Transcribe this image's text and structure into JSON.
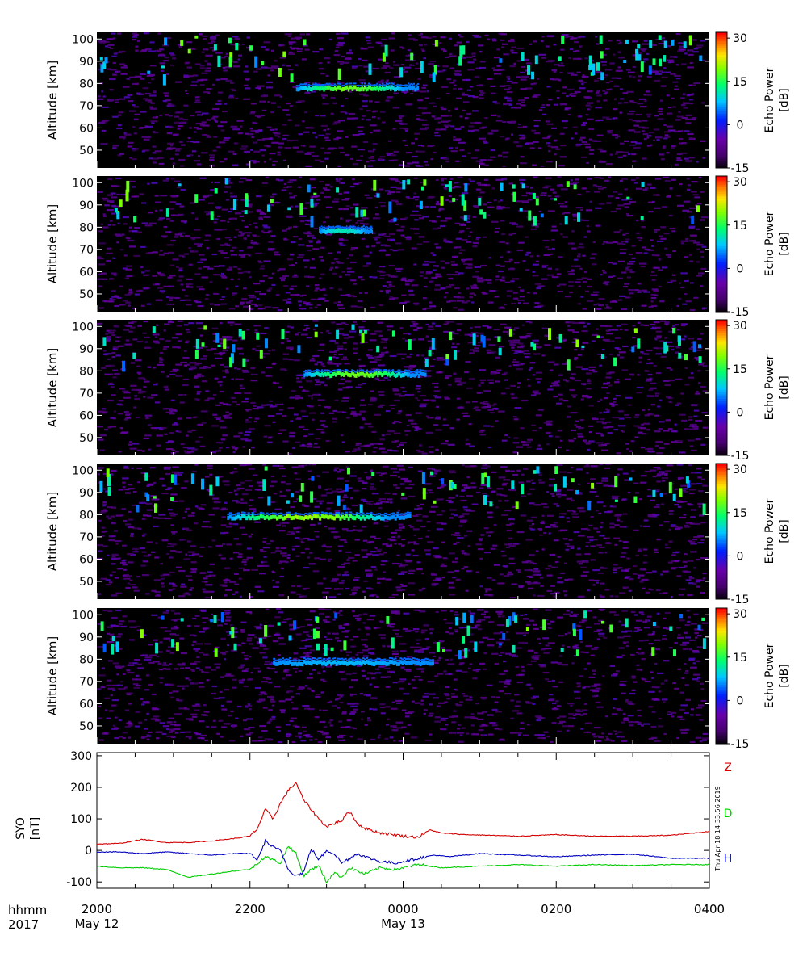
{
  "chart_data": [
    {
      "type": "heatmap",
      "panel": 1,
      "ylabel": "Altitude [km]",
      "ylim": [
        42,
        103
      ],
      "y_ticks": [
        50,
        60,
        70,
        80,
        90,
        100
      ],
      "xlim": [
        0,
        8
      ],
      "colorbar": {
        "label_line1": "Echo Power",
        "label_line2": "[dB]",
        "ticks": [
          30,
          15,
          0,
          -15
        ],
        "range": [
          -15,
          32
        ]
      },
      "echo_layer": {
        "start_h": 2.6,
        "end_h": 4.2,
        "altitude_km": 77.5,
        "peak_db": 20
      }
    },
    {
      "type": "heatmap",
      "panel": 2,
      "ylabel": "Altitude [km]",
      "ylim": [
        42,
        103
      ],
      "y_ticks": [
        50,
        60,
        70,
        80,
        90,
        100
      ],
      "xlim": [
        0,
        8
      ],
      "colorbar": {
        "label_line1": "Echo Power",
        "label_line2": "[dB]",
        "ticks": [
          30,
          15,
          0,
          -15
        ],
        "range": [
          -15,
          32
        ]
      },
      "echo_layer": {
        "start_h": 2.9,
        "end_h": 3.6,
        "altitude_km": 78,
        "peak_db": 12
      }
    },
    {
      "type": "heatmap",
      "panel": 3,
      "ylabel": "Altitude [km]",
      "ylim": [
        42,
        103
      ],
      "y_ticks": [
        50,
        60,
        70,
        80,
        90,
        100
      ],
      "xlim": [
        0,
        8
      ],
      "colorbar": {
        "label_line1": "Echo Power",
        "label_line2": "[dB]",
        "ticks": [
          30,
          15,
          0,
          -15
        ],
        "range": [
          -15,
          32
        ]
      },
      "echo_layer": {
        "start_h": 2.7,
        "end_h": 4.3,
        "altitude_km": 78,
        "peak_db": 20
      }
    },
    {
      "type": "heatmap",
      "panel": 4,
      "ylabel": "Altitude [km]",
      "ylim": [
        42,
        103
      ],
      "y_ticks": [
        50,
        60,
        70,
        80,
        90,
        100
      ],
      "xlim": [
        0,
        8
      ],
      "colorbar": {
        "label_line1": "Echo Power",
        "label_line2": "[dB]",
        "ticks": [
          30,
          15,
          0,
          -15
        ],
        "range": [
          -15,
          32
        ]
      },
      "echo_layer": {
        "start_h": 1.7,
        "end_h": 4.1,
        "altitude_km": 78.5,
        "peak_db": 22
      }
    },
    {
      "type": "heatmap",
      "panel": 5,
      "ylabel": "Altitude [km]",
      "ylim": [
        42,
        103
      ],
      "y_ticks": [
        50,
        60,
        70,
        80,
        90,
        100
      ],
      "xlim": [
        0,
        8
      ],
      "colorbar": {
        "label_line1": "Echo Power",
        "label_line2": "[dB]",
        "ticks": [
          30,
          15,
          0,
          -15
        ],
        "range": [
          -15,
          32
        ]
      },
      "echo_layer": {
        "start_h": 2.3,
        "end_h": 4.4,
        "altitude_km": 78,
        "peak_db": 8
      }
    },
    {
      "type": "line",
      "panel": 6,
      "ylabel_line1": "SYO",
      "ylabel_line2": "[nT]",
      "ylim": [
        -120,
        310
      ],
      "y_ticks": [
        -100,
        0,
        100,
        200,
        300
      ],
      "xlim": [
        0,
        8
      ],
      "timestamp": "Thu Apr 18 14:33:56 2019",
      "series": [
        {
          "name": "Z",
          "color": "#d40000",
          "x": [
            0,
            0.3,
            0.6,
            0.9,
            1.2,
            1.5,
            1.8,
            2.0,
            2.1,
            2.2,
            2.3,
            2.4,
            2.5,
            2.6,
            2.7,
            2.9,
            3.0,
            3.2,
            3.3,
            3.4,
            3.5,
            3.7,
            3.9,
            4.0,
            4.2,
            4.35,
            4.5,
            4.8,
            5.1,
            5.5,
            6.0,
            6.5,
            7.0,
            7.5,
            8.0
          ],
          "y": [
            20,
            22,
            35,
            25,
            25,
            30,
            38,
            45,
            70,
            130,
            100,
            150,
            190,
            215,
            160,
            100,
            75,
            95,
            125,
            85,
            70,
            55,
            50,
            45,
            42,
            65,
            55,
            50,
            48,
            45,
            50,
            45,
            45,
            48,
            60
          ]
        },
        {
          "name": "D",
          "color": "#00cc00",
          "x": [
            0,
            0.3,
            0.6,
            0.9,
            1.2,
            1.5,
            1.8,
            2.0,
            2.2,
            2.4,
            2.5,
            2.6,
            2.7,
            2.8,
            2.9,
            3.0,
            3.1,
            3.2,
            3.3,
            3.5,
            3.7,
            3.9,
            4.2,
            4.5,
            5.0,
            5.5,
            6.0,
            6.5,
            7.0,
            7.5,
            8.0
          ],
          "y": [
            -50,
            -55,
            -55,
            -60,
            -85,
            -75,
            -65,
            -60,
            -20,
            -40,
            15,
            -10,
            -80,
            -60,
            -50,
            -100,
            -70,
            -85,
            -55,
            -75,
            -55,
            -60,
            -45,
            -55,
            -50,
            -45,
            -50,
            -45,
            -48,
            -45,
            -45
          ]
        },
        {
          "name": "H",
          "color": "#0000c0",
          "x": [
            0,
            0.3,
            0.6,
            0.9,
            1.2,
            1.5,
            1.8,
            2.0,
            2.1,
            2.2,
            2.3,
            2.4,
            2.5,
            2.6,
            2.7,
            2.8,
            2.9,
            3.0,
            3.1,
            3.2,
            3.3,
            3.4,
            3.5,
            3.7,
            3.9,
            4.2,
            4.4,
            4.6,
            5.0,
            5.5,
            6.0,
            6.5,
            7.0,
            7.5,
            8.0
          ],
          "y": [
            -5,
            -5,
            -10,
            -5,
            -10,
            -15,
            -10,
            -10,
            -30,
            30,
            10,
            0,
            -60,
            -80,
            -70,
            5,
            -30,
            0,
            -10,
            -40,
            -25,
            -10,
            -20,
            -35,
            -40,
            -25,
            -15,
            -20,
            -10,
            -15,
            -20,
            -15,
            -12,
            -25,
            -25
          ]
        }
      ]
    }
  ],
  "x_axis": {
    "row1_label": "hhmm",
    "row2_label": "2017",
    "tick_labels": [
      {
        "h": 0,
        "time": "2000",
        "date": "May 12"
      },
      {
        "h": 2,
        "time": "2200",
        "date": ""
      },
      {
        "h": 4,
        "time": "0000",
        "date": "May 13"
      },
      {
        "h": 6,
        "time": "0200",
        "date": ""
      },
      {
        "h": 8,
        "time": "0400",
        "date": ""
      }
    ]
  },
  "colors": {
    "background": "#ffffff",
    "plot_background": "#000000"
  }
}
